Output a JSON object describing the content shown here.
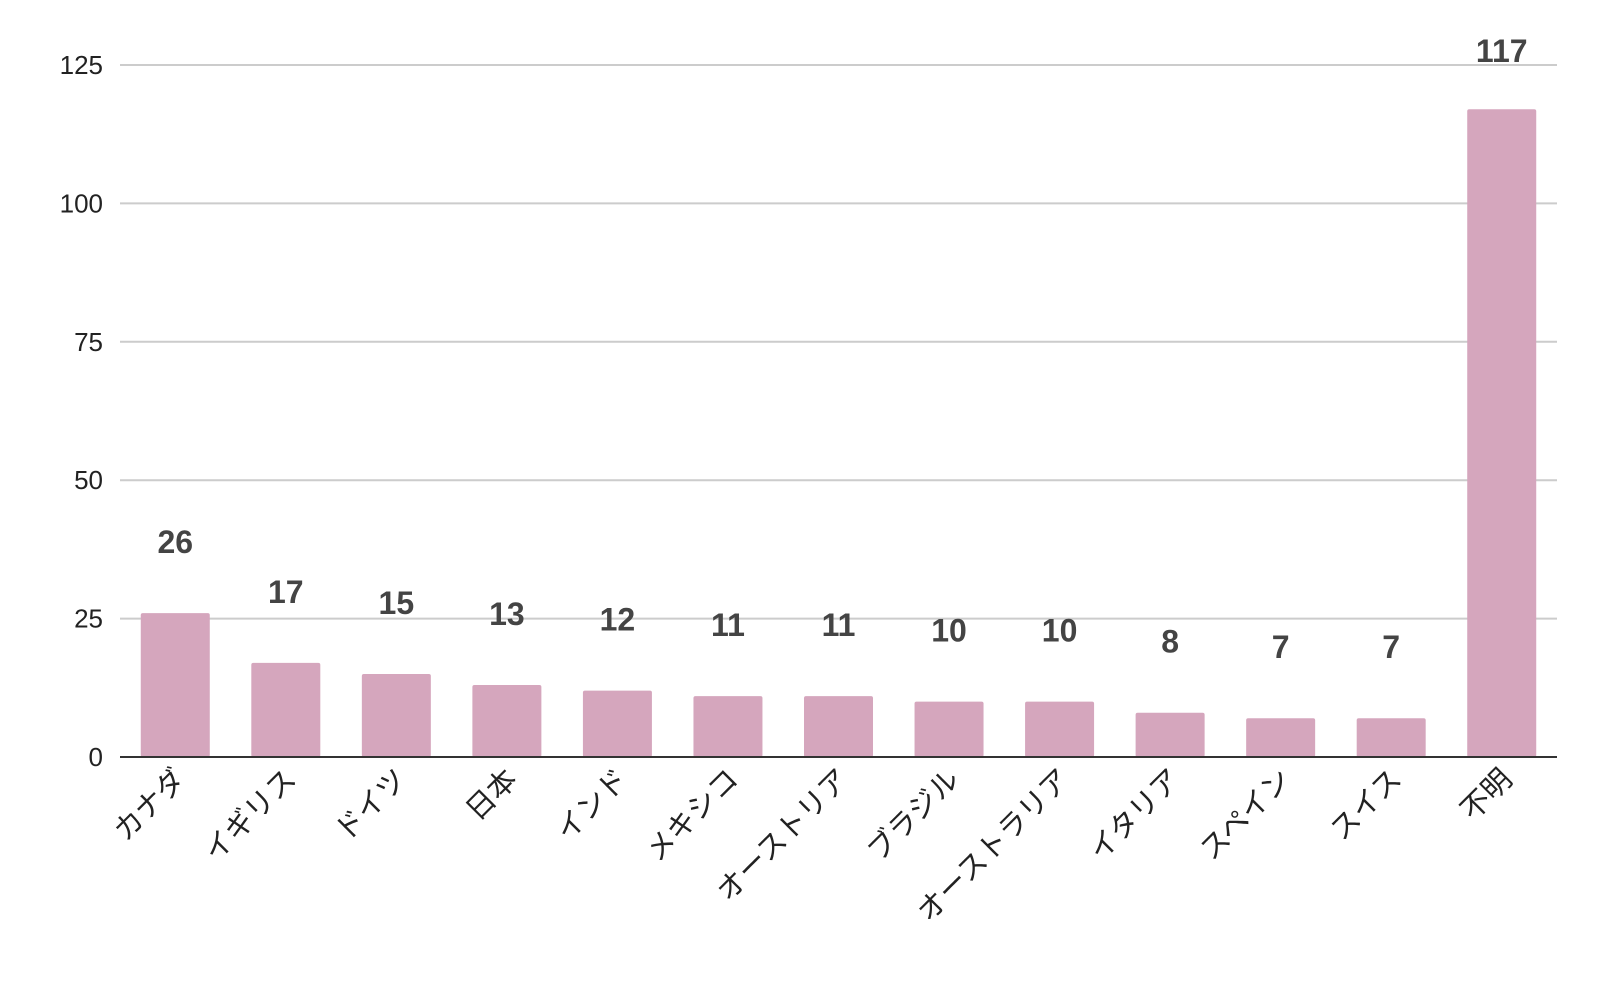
{
  "chart_data": {
    "type": "bar",
    "title": "",
    "xlabel": "",
    "ylabel": "",
    "categories": [
      "カナダ",
      "イギリス",
      "ドイツ",
      "日本",
      "インド",
      "メキシコ",
      "オーストリア",
      "ブラジル",
      "オーストラリア",
      "イタリア",
      "スペイン",
      "スイス",
      "不明"
    ],
    "values": [
      26,
      17,
      15,
      13,
      12,
      11,
      11,
      10,
      10,
      8,
      7,
      7,
      117
    ],
    "ylim": [
      0,
      125
    ],
    "yticks": [
      0,
      25,
      50,
      75,
      100,
      125
    ],
    "grid": true,
    "legend": "none",
    "data_labels": true,
    "bar_color": "#d5a6bd"
  }
}
